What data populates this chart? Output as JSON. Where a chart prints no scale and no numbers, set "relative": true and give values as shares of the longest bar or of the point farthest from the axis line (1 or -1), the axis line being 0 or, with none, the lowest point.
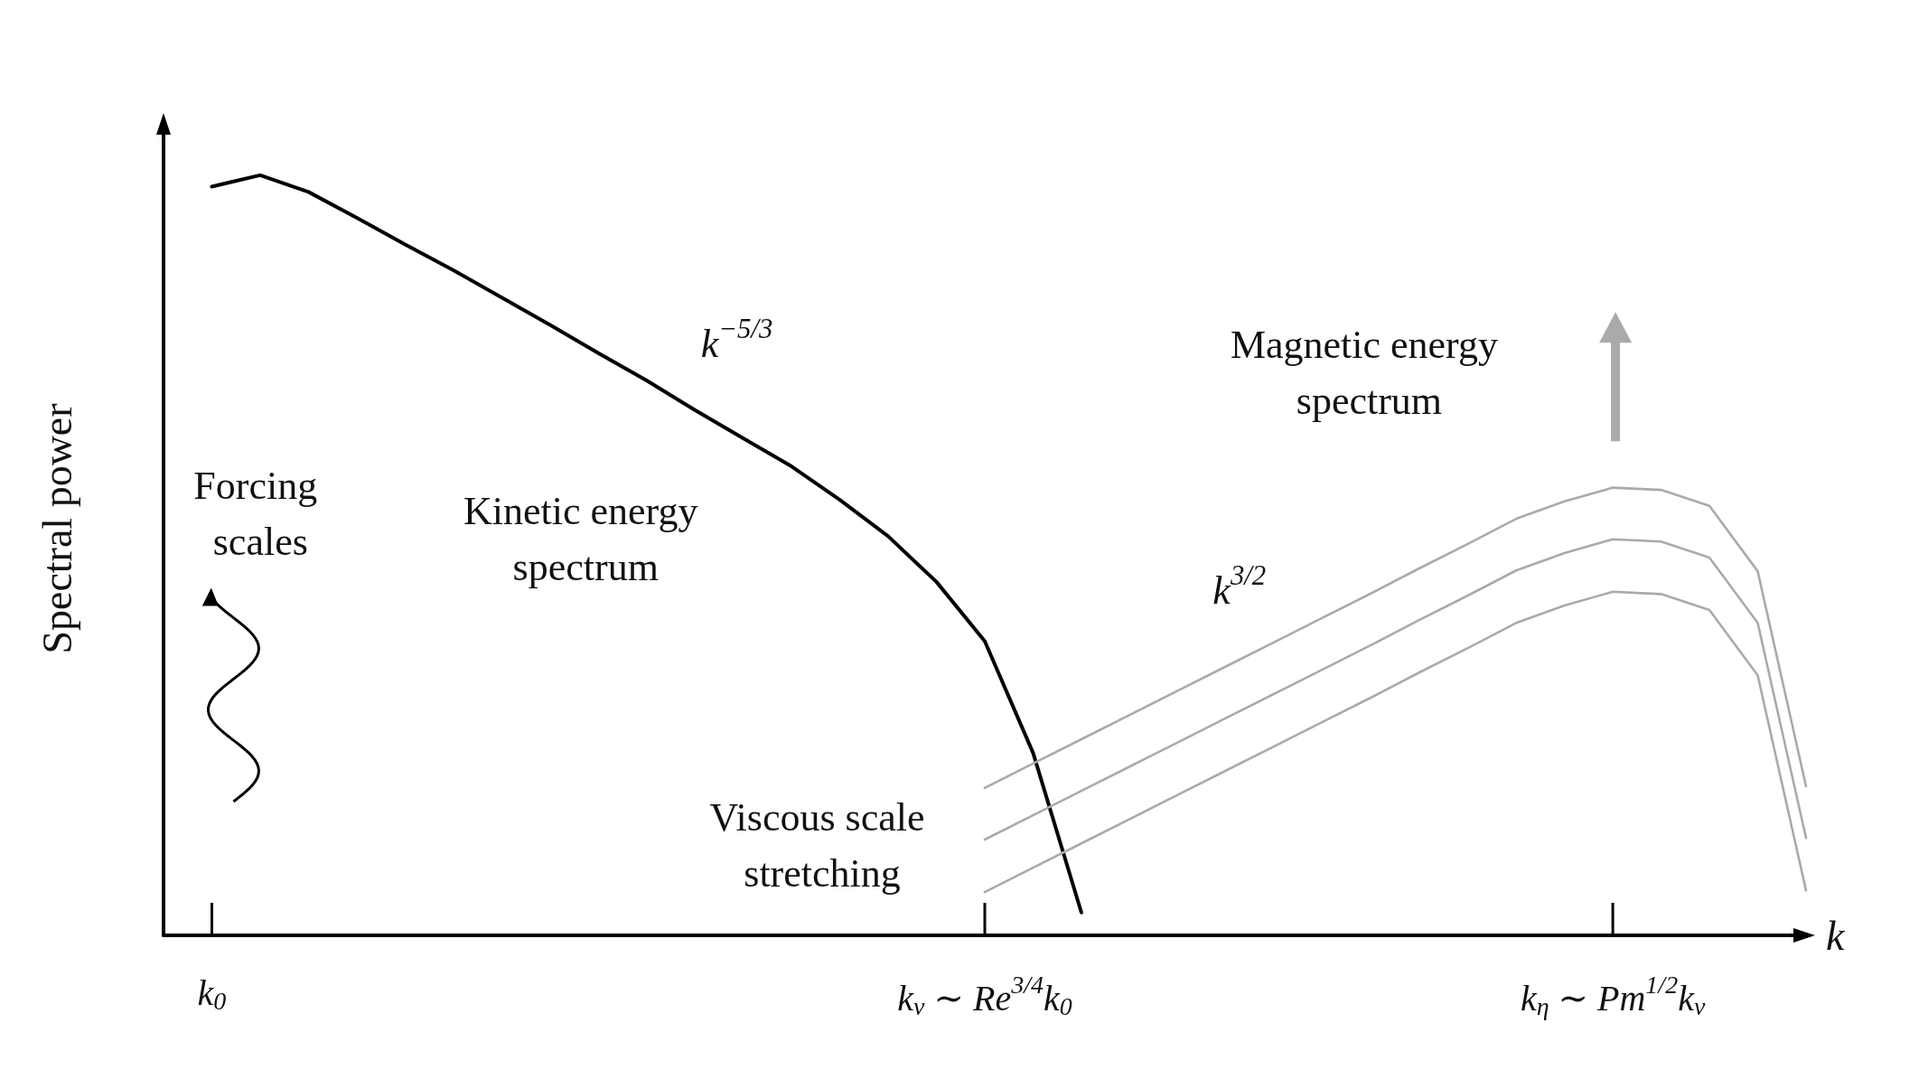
{
  "chart_data": {
    "type": "line",
    "relative": true,
    "ylabel": "Spectral power",
    "xlabel": "k",
    "categories": [
      null,
      "k$_{0}$",
      null,
      null,
      null,
      null,
      null,
      null,
      null,
      null,
      null,
      null,
      null,
      null,
      null,
      null,
      null,
      "k$_{ν}$ ∼ Re$^{3/4}$k$_{0}$",
      null,
      null,
      null,
      null,
      null,
      null,
      null,
      null,
      null,
      null,
      null,
      null,
      "k$_{η}$ ∼ Pm$^{1/2}$k$_{ν}$",
      null,
      null,
      null,
      null
    ],
    "tick_labels": "x",
    "grid": false,
    "marker": "none",
    "line_style": "solid",
    "series": [
      {
        "color": "#000000",
        "values": [
          null,
          0.985,
          1.0,
          0.978,
          0.944,
          0.909,
          0.875,
          0.839,
          0.803,
          0.766,
          0.73,
          0.691,
          0.654,
          0.617,
          0.573,
          0.525,
          0.465,
          0.387,
          0.24,
          0.03,
          null,
          null,
          null,
          null,
          null,
          null,
          null,
          null,
          null,
          null,
          null,
          null,
          null,
          null,
          null
        ]
      },
      {
        "color": "#aaaaaa",
        "values": [
          null,
          null,
          null,
          null,
          null,
          null,
          null,
          null,
          null,
          null,
          null,
          null,
          null,
          null,
          null,
          null,
          null,
          0.194,
          0.226,
          0.258,
          0.29,
          0.322,
          0.354,
          0.386,
          0.418,
          0.45,
          0.483,
          0.515,
          0.548,
          0.571,
          0.589,
          0.586,
          0.565,
          0.479,
          0.196
        ]
      },
      {
        "color": "#aaaaaa",
        "values": [
          null,
          null,
          null,
          null,
          null,
          null,
          null,
          null,
          null,
          null,
          null,
          null,
          null,
          null,
          null,
          null,
          null,
          0.126,
          0.158,
          0.19,
          0.222,
          0.254,
          0.286,
          0.318,
          0.35,
          0.382,
          0.415,
          0.447,
          0.48,
          0.503,
          0.521,
          0.518,
          0.497,
          0.411,
          0.128
        ]
      },
      {
        "color": "#aaaaaa",
        "values": [
          null,
          null,
          null,
          null,
          null,
          null,
          null,
          null,
          null,
          null,
          null,
          null,
          null,
          null,
          null,
          null,
          null,
          0.057,
          0.089,
          0.121,
          0.153,
          0.185,
          0.217,
          0.249,
          0.281,
          0.313,
          0.346,
          0.378,
          0.411,
          0.434,
          0.452,
          0.449,
          0.428,
          0.342,
          0.059
        ]
      }
    ],
    "annotations": [
      "k$^{−5/3}$",
      "Forcing scales",
      "Kinetic energy spectrum",
      "k$^{3/2}$",
      "Magnetic energy spectrum",
      "Viscous scale stretching"
    ]
  }
}
